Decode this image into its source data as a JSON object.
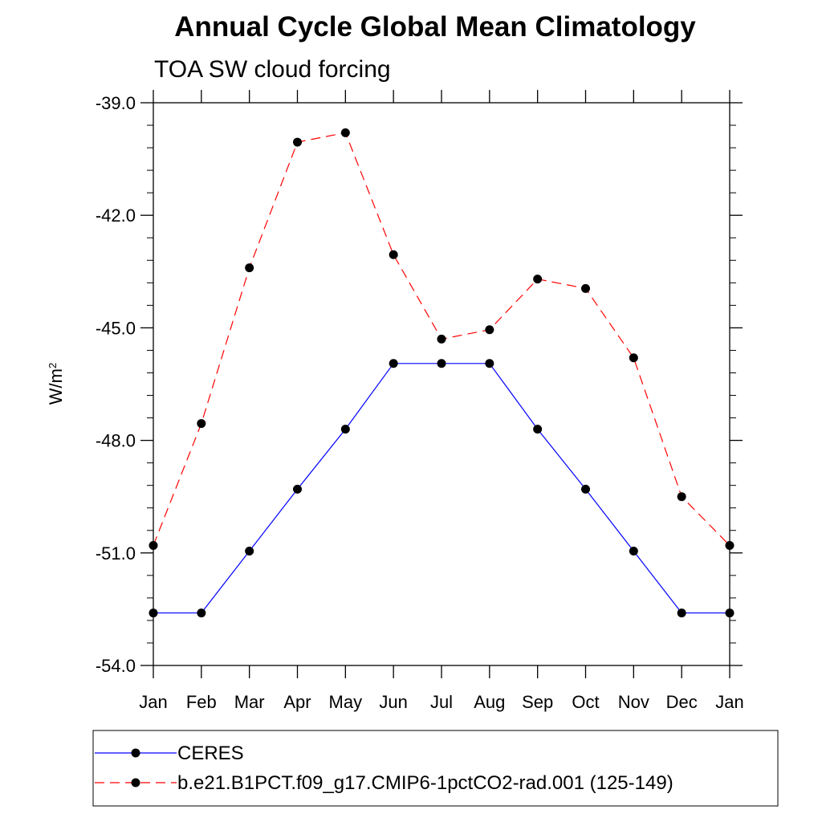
{
  "title": "Annual Cycle Global Mean Climatology",
  "chart_data": {
    "type": "line",
    "title": "Annual Cycle Global Mean Climatology",
    "subtitle": "TOA SW cloud forcing",
    "xlabel": "",
    "ylabel_base": "W/m",
    "ylabel_sup": "2",
    "categories": [
      "Jan",
      "Feb",
      "Mar",
      "Apr",
      "May",
      "Jun",
      "Jul",
      "Aug",
      "Sep",
      "Oct",
      "Nov",
      "Dec",
      "Jan"
    ],
    "ylim": [
      -54.0,
      -39.0
    ],
    "yticks": [
      -39.0,
      -42.0,
      -45.0,
      -48.0,
      -51.0,
      -54.0
    ],
    "ytick_labels": [
      "-39.0",
      "-42.0",
      "-45.0",
      "-48.0",
      "-51.0",
      "-54.0"
    ],
    "legend_position": "bottom",
    "series": [
      {
        "name": "CERES",
        "color": "#0000ff",
        "dash": "solid",
        "values": [
          -52.6,
          -52.6,
          -50.95,
          -49.3,
          -47.7,
          -45.95,
          -45.95,
          -45.95,
          -47.7,
          -49.3,
          -50.95,
          -52.6,
          -52.6
        ]
      },
      {
        "name": "b.e21.B1PCT.f09_g17.CMIP6-1pctCO2-rad.001 (125-149)",
        "color": "#ff0000",
        "dash": "dashed",
        "values": [
          -50.8,
          -47.55,
          -43.4,
          -40.05,
          -39.8,
          -43.05,
          -45.3,
          -45.05,
          -43.7,
          -43.95,
          -45.8,
          -49.5,
          -50.8
        ]
      }
    ]
  }
}
